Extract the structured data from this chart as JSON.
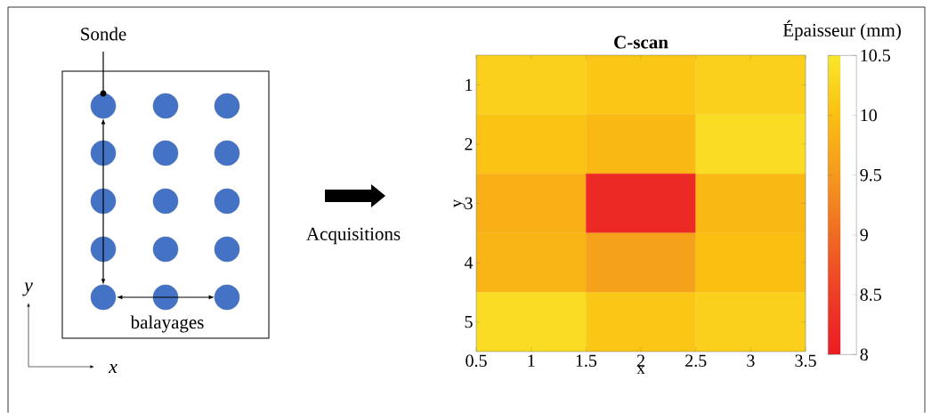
{
  "chart_data": [
    {
      "type": "other",
      "annotations": [
        "Sonde",
        "balayages",
        "Acquisitions"
      ],
      "xlabel": "x",
      "ylabel": "y"
    },
    {
      "type": "heatmap",
      "title": "C-scan",
      "xlabel": "x",
      "ylabel": "y",
      "clabel": "Épaisseur (mm)",
      "xlim": [
        0.5,
        3.5
      ],
      "xticks": [
        0.5,
        1,
        1.5,
        2,
        2.5,
        3,
        3.5
      ],
      "ylim": [
        5.5,
        0.5
      ],
      "yticks": [
        1,
        2,
        3,
        4,
        5
      ],
      "clim": [
        8,
        10.5
      ],
      "cticks": [
        8,
        8.5,
        9,
        9.5,
        10,
        10.5
      ],
      "cells": [
        [
          10.2,
          10.1,
          10.2
        ],
        [
          10.05,
          9.9,
          10.35
        ],
        [
          9.8,
          8.2,
          9.9
        ],
        [
          9.85,
          9.6,
          10.0
        ],
        [
          10.35,
          10.1,
          10.2
        ]
      ]
    }
  ]
}
